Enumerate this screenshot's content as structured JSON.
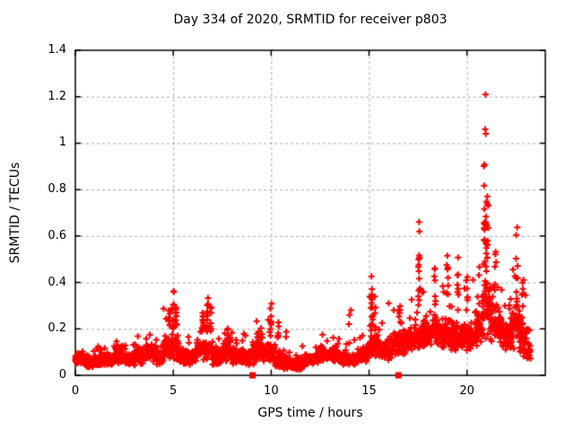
{
  "chart_data": {
    "type": "scatter",
    "title": "Day 334 of 2020, SRMTID for receiver p803",
    "xlabel": "GPS time / hours",
    "ylabel": "SRMTID / TECUs",
    "xlim": [
      0,
      24
    ],
    "ylim": [
      0,
      1.4
    ],
    "grid": true,
    "legend": "none",
    "xticks": {
      "values": [
        0,
        5,
        10,
        15,
        20
      ],
      "labels": [
        "0",
        "5",
        "10",
        "15",
        "20"
      ]
    },
    "yticks": {
      "values": [
        0,
        0.2,
        0.4,
        0.6,
        0.8,
        1.0,
        1.2,
        1.4
      ],
      "labels": [
        "0",
        "0.2",
        "0.4",
        "0.6",
        "0.8",
        "1",
        "1.2",
        "1.4"
      ]
    },
    "colors": {
      "points": "#ff0000",
      "grid": "#a8a8a8",
      "border": "#000000",
      "background": "#ffffff"
    },
    "marker": {
      "type": "plus",
      "size": 7,
      "stroke": 2
    },
    "axis_markers": {
      "type": "filled-square",
      "size": 7,
      "color": "#ff0000",
      "points": [
        [
          9.05,
          0
        ],
        [
          16.5,
          0
        ]
      ]
    },
    "outlier_points": [
      [
        20.95,
        1.21
      ],
      [
        20.93,
        1.06
      ],
      [
        20.96,
        1.04
      ],
      [
        17.55,
        0.66
      ],
      [
        17.57,
        0.62
      ],
      [
        13.97,
        0.22
      ],
      [
        14.0,
        0.26
      ],
      [
        14.07,
        0.28
      ],
      [
        16.0,
        0.31
      ]
    ],
    "peak_columns_format": "[x_hours, y_min, y_max, n_points]",
    "peak_columns": [
      [
        4.8,
        0.18,
        0.28,
        8
      ],
      [
        5.0,
        0.2,
        0.38,
        10
      ],
      [
        5.15,
        0.18,
        0.33,
        8
      ],
      [
        6.5,
        0.15,
        0.28,
        8
      ],
      [
        6.75,
        0.18,
        0.35,
        10
      ],
      [
        6.9,
        0.15,
        0.3,
        6
      ],
      [
        7.8,
        0.12,
        0.25,
        6
      ],
      [
        9.3,
        0.12,
        0.24,
        6
      ],
      [
        9.5,
        0.12,
        0.22,
        5
      ],
      [
        10.0,
        0.15,
        0.31,
        8
      ],
      [
        10.4,
        0.1,
        0.23,
        5
      ],
      [
        15.15,
        0.2,
        0.45,
        10
      ],
      [
        15.3,
        0.15,
        0.3,
        5
      ],
      [
        16.55,
        0.12,
        0.3,
        6
      ],
      [
        17.55,
        0.25,
        0.66,
        12
      ],
      [
        18.35,
        0.25,
        0.47,
        8
      ],
      [
        19.0,
        0.3,
        0.57,
        8
      ],
      [
        19.55,
        0.25,
        0.52,
        7
      ],
      [
        20.0,
        0.25,
        0.45,
        6
      ],
      [
        20.6,
        0.25,
        0.5,
        6
      ],
      [
        20.9,
        0.35,
        0.95,
        14
      ],
      [
        21.0,
        0.3,
        0.8,
        10
      ],
      [
        21.05,
        0.55,
        0.75,
        6
      ],
      [
        21.45,
        0.28,
        0.55,
        6
      ],
      [
        22.55,
        0.3,
        0.72,
        10
      ],
      [
        22.85,
        0.15,
        0.45,
        8
      ]
    ],
    "baseline_segments_format": "[x0_hours, x1_hours, n_points, y_low, y_mode, y_spread, y_high]",
    "baseline_segments": [
      [
        0.0,
        0.5,
        55,
        0.02,
        0.07,
        0.03,
        0.16
      ],
      [
        0.5,
        1.0,
        55,
        0.02,
        0.06,
        0.03,
        0.13
      ],
      [
        1.0,
        1.6,
        65,
        0.01,
        0.06,
        0.03,
        0.13
      ],
      [
        1.6,
        2.0,
        45,
        0.02,
        0.07,
        0.03,
        0.15
      ],
      [
        2.0,
        2.4,
        45,
        0.02,
        0.09,
        0.05,
        0.19
      ],
      [
        2.4,
        3.0,
        65,
        0.02,
        0.07,
        0.03,
        0.14
      ],
      [
        3.0,
        3.6,
        65,
        0.02,
        0.08,
        0.04,
        0.17
      ],
      [
        3.6,
        4.1,
        55,
        0.02,
        0.1,
        0.05,
        0.22
      ],
      [
        4.1,
        4.5,
        45,
        0.02,
        0.08,
        0.04,
        0.18
      ],
      [
        4.5,
        5.3,
        85,
        0.02,
        0.12,
        0.06,
        0.3
      ],
      [
        5.3,
        6.2,
        95,
        0.02,
        0.08,
        0.04,
        0.17
      ],
      [
        6.2,
        7.0,
        85,
        0.02,
        0.11,
        0.05,
        0.28
      ],
      [
        7.0,
        7.5,
        55,
        0.02,
        0.08,
        0.04,
        0.16
      ],
      [
        7.5,
        8.0,
        55,
        0.02,
        0.1,
        0.05,
        0.22
      ],
      [
        8.0,
        9.0,
        105,
        0.02,
        0.08,
        0.04,
        0.18
      ],
      [
        9.0,
        9.7,
        75,
        0.03,
        0.1,
        0.05,
        0.24
      ],
      [
        9.7,
        10.2,
        55,
        0.02,
        0.09,
        0.05,
        0.25
      ],
      [
        10.2,
        10.8,
        65,
        0.01,
        0.06,
        0.04,
        0.2
      ],
      [
        10.8,
        11.7,
        95,
        0.005,
        0.05,
        0.03,
        0.13
      ],
      [
        11.7,
        12.4,
        75,
        0.02,
        0.07,
        0.03,
        0.15
      ],
      [
        12.4,
        13.4,
        105,
        0.02,
        0.09,
        0.04,
        0.19
      ],
      [
        13.4,
        14.4,
        105,
        0.02,
        0.07,
        0.03,
        0.16
      ],
      [
        14.4,
        15.0,
        65,
        0.03,
        0.09,
        0.04,
        0.18
      ],
      [
        15.0,
        15.5,
        55,
        0.04,
        0.13,
        0.06,
        0.35
      ],
      [
        15.5,
        16.2,
        75,
        0.04,
        0.11,
        0.05,
        0.25
      ],
      [
        16.2,
        17.0,
        85,
        0.05,
        0.14,
        0.06,
        0.3
      ],
      [
        17.0,
        17.6,
        65,
        0.05,
        0.16,
        0.07,
        0.35
      ],
      [
        17.6,
        18.2,
        65,
        0.05,
        0.17,
        0.07,
        0.4
      ],
      [
        18.2,
        18.7,
        55,
        0.06,
        0.19,
        0.08,
        0.45
      ],
      [
        18.7,
        19.2,
        55,
        0.06,
        0.18,
        0.08,
        0.45
      ],
      [
        19.2,
        19.8,
        65,
        0.05,
        0.17,
        0.08,
        0.48
      ],
      [
        19.8,
        20.4,
        65,
        0.05,
        0.16,
        0.07,
        0.42
      ],
      [
        20.4,
        20.75,
        40,
        0.06,
        0.2,
        0.09,
        0.48
      ],
      [
        20.75,
        21.2,
        50,
        0.08,
        0.3,
        0.15,
        0.75
      ],
      [
        21.2,
        21.8,
        65,
        0.06,
        0.22,
        0.1,
        0.52
      ],
      [
        21.8,
        22.3,
        55,
        0.05,
        0.17,
        0.08,
        0.4
      ],
      [
        22.3,
        22.7,
        45,
        0.06,
        0.22,
        0.1,
        0.5
      ],
      [
        22.7,
        23.05,
        40,
        0.03,
        0.15,
        0.09,
        0.42
      ],
      [
        23.05,
        23.25,
        20,
        0.03,
        0.1,
        0.05,
        0.22
      ]
    ]
  }
}
